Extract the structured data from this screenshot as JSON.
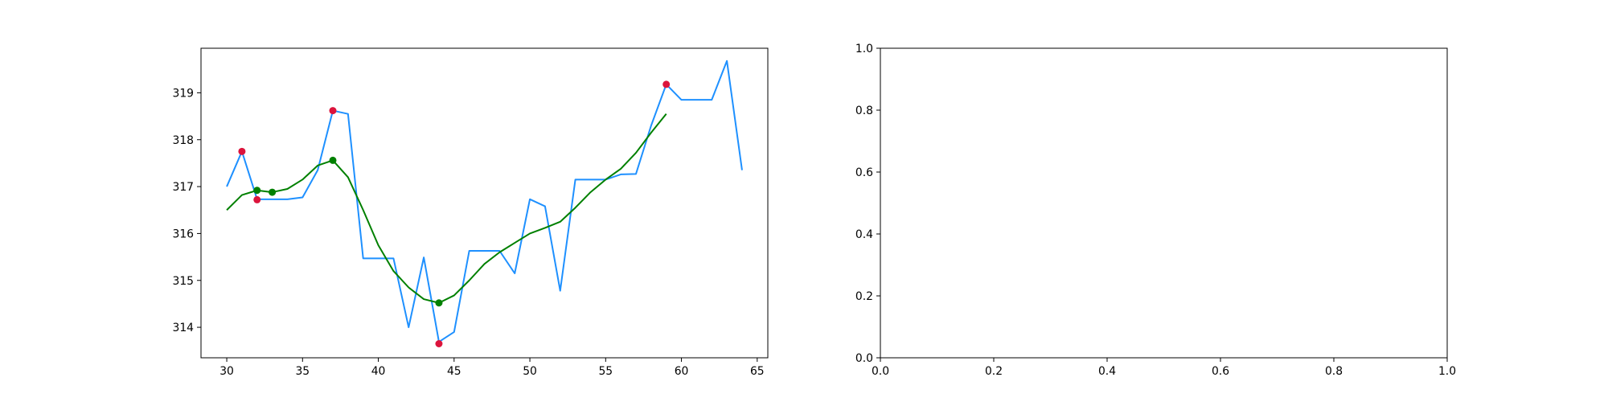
{
  "colors": {
    "raw_line": "#1E90FF",
    "smooth_line": "#008000",
    "raw_extrema": "#DC143C",
    "smooth_extrema": "#008000",
    "axes": "#000000",
    "background": "#ffffff"
  },
  "chart_data": [
    {
      "type": "line",
      "title": "",
      "xlabel": "",
      "ylabel": "",
      "xlim": [
        28.3,
        65.7
      ],
      "ylim": [
        313.35,
        319.95
      ],
      "xticks": [
        30,
        35,
        40,
        45,
        50,
        55,
        60,
        65
      ],
      "yticks": [
        314,
        315,
        316,
        317,
        318,
        319
      ],
      "grid": false,
      "legend": "none",
      "series": [
        {
          "kind": "line",
          "color_key": "raw_line",
          "x": [
            30,
            31,
            32,
            33,
            34,
            35,
            36,
            37,
            38,
            39,
            40,
            41,
            42,
            43,
            44,
            45,
            46,
            47,
            48,
            49,
            50,
            51,
            52,
            53,
            54,
            55,
            56,
            57,
            58,
            59,
            60,
            61,
            62,
            63,
            64
          ],
          "y": [
            317.0,
            317.75,
            316.73,
            316.73,
            316.73,
            316.77,
            317.35,
            318.62,
            318.55,
            315.47,
            315.47,
            315.47,
            314.0,
            315.49,
            313.69,
            313.9,
            315.63,
            315.63,
            315.63,
            315.15,
            316.73,
            316.58,
            314.78,
            317.15,
            317.15,
            317.15,
            317.26,
            317.27,
            318.3,
            319.18,
            318.85,
            318.85,
            318.85,
            319.68,
            317.35
          ]
        },
        {
          "kind": "line",
          "color_key": "smooth_line",
          "x": [
            30,
            31,
            32,
            33,
            34,
            35,
            36,
            37,
            38,
            39,
            40,
            41,
            42,
            43,
            44,
            45,
            46,
            47,
            48,
            49,
            50,
            51,
            52,
            53,
            54,
            55,
            56,
            57,
            58,
            59
          ],
          "y": [
            316.5,
            316.82,
            316.92,
            316.88,
            316.95,
            317.15,
            317.45,
            317.56,
            317.2,
            316.5,
            315.75,
            315.2,
            314.85,
            314.6,
            314.52,
            314.68,
            315.0,
            315.35,
            315.6,
            315.8,
            316.0,
            316.12,
            316.25,
            316.55,
            316.88,
            317.15,
            317.38,
            317.72,
            318.15,
            318.55
          ]
        },
        {
          "kind": "scatter",
          "color_key": "raw_extrema",
          "x": [
            31,
            32,
            37,
            44,
            59
          ],
          "y": [
            317.75,
            316.72,
            318.62,
            313.65,
            319.18
          ]
        },
        {
          "kind": "scatter",
          "color_key": "smooth_extrema",
          "x": [
            32,
            33,
            37,
            44
          ],
          "y": [
            316.92,
            316.88,
            317.56,
            314.52
          ]
        }
      ]
    },
    {
      "type": "line",
      "title": "",
      "xlabel": "",
      "ylabel": "",
      "xlim": [
        0.0,
        1.0
      ],
      "ylim": [
        0.0,
        1.0
      ],
      "xticks": [
        0.0,
        0.2,
        0.4,
        0.6,
        0.8,
        1.0
      ],
      "yticks": [
        0.0,
        0.2,
        0.4,
        0.6,
        0.8,
        1.0
      ],
      "tick_format": "fixed1",
      "grid": false,
      "legend": "none",
      "series": []
    }
  ]
}
